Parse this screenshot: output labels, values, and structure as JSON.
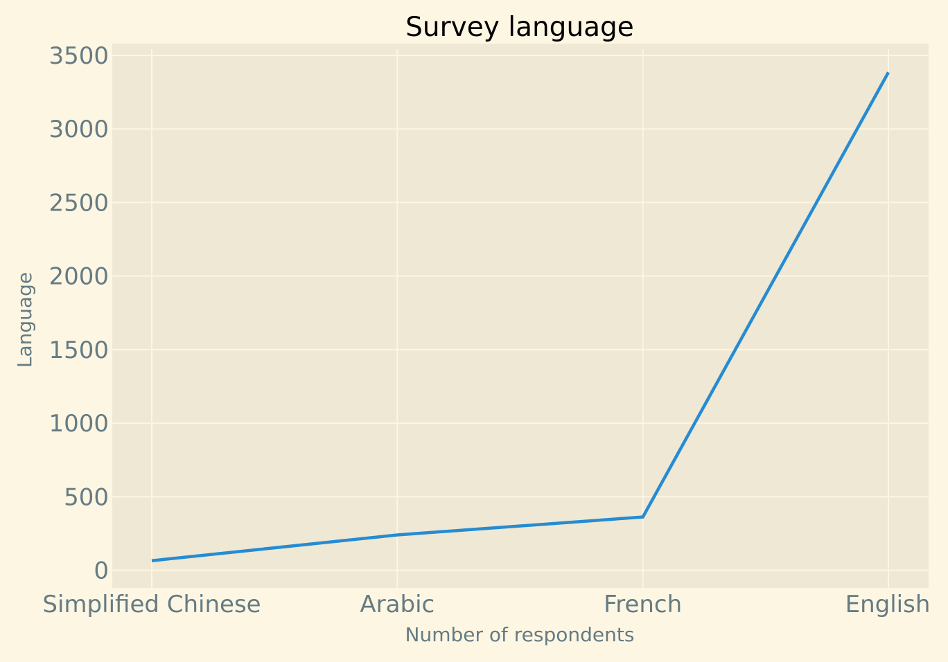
{
  "chart_data": {
    "type": "line",
    "title": "Survey language",
    "xlabel": "Number of respondents",
    "ylabel": "Language",
    "categories": [
      "Simplified Chinese",
      "Arabic",
      "French",
      "English"
    ],
    "series": [
      {
        "values": [
          65,
          240,
          362,
          3385
        ]
      }
    ],
    "ylim": [
      -120,
      3580
    ],
    "yticks": [
      0,
      500,
      1000,
      1500,
      2000,
      2500,
      3000,
      3500
    ],
    "grid": true,
    "colors": {
      "figure_background": "#fdf6e3",
      "plot_background": "#eee8d5",
      "grid": "#fdf6e3",
      "line": "#268bd2",
      "tick_text": "#657b83",
      "title_text": "#000000"
    }
  }
}
